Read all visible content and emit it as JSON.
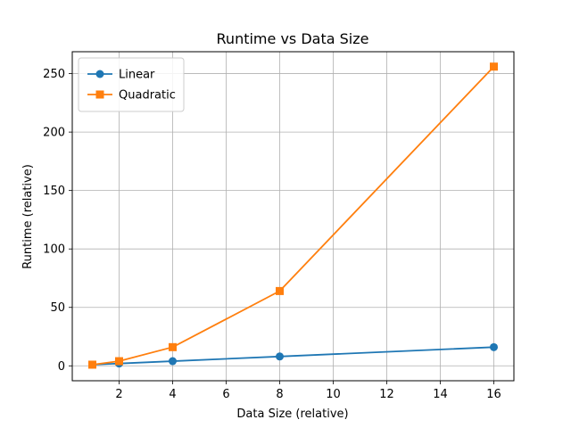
{
  "chart_data": {
    "type": "line",
    "title": "Runtime vs Data Size",
    "xlabel": "Data Size (relative)",
    "ylabel": "Runtime (relative)",
    "x": [
      1,
      2,
      4,
      8,
      16
    ],
    "xlim": [
      0.25,
      16.75
    ],
    "ylim": [
      -12.75,
      268.75
    ],
    "xticks": [
      2,
      4,
      6,
      8,
      10,
      12,
      14,
      16
    ],
    "yticks": [
      0,
      50,
      100,
      150,
      200,
      250
    ],
    "grid": true,
    "legend_position": "upper-left",
    "series": [
      {
        "name": "Linear",
        "values": [
          1,
          2,
          4,
          8,
          16
        ],
        "color": "#1f77b4",
        "marker": "circle"
      },
      {
        "name": "Quadratic",
        "values": [
          1,
          4,
          16,
          64,
          256
        ],
        "color": "#ff7f0e",
        "marker": "square"
      }
    ]
  }
}
